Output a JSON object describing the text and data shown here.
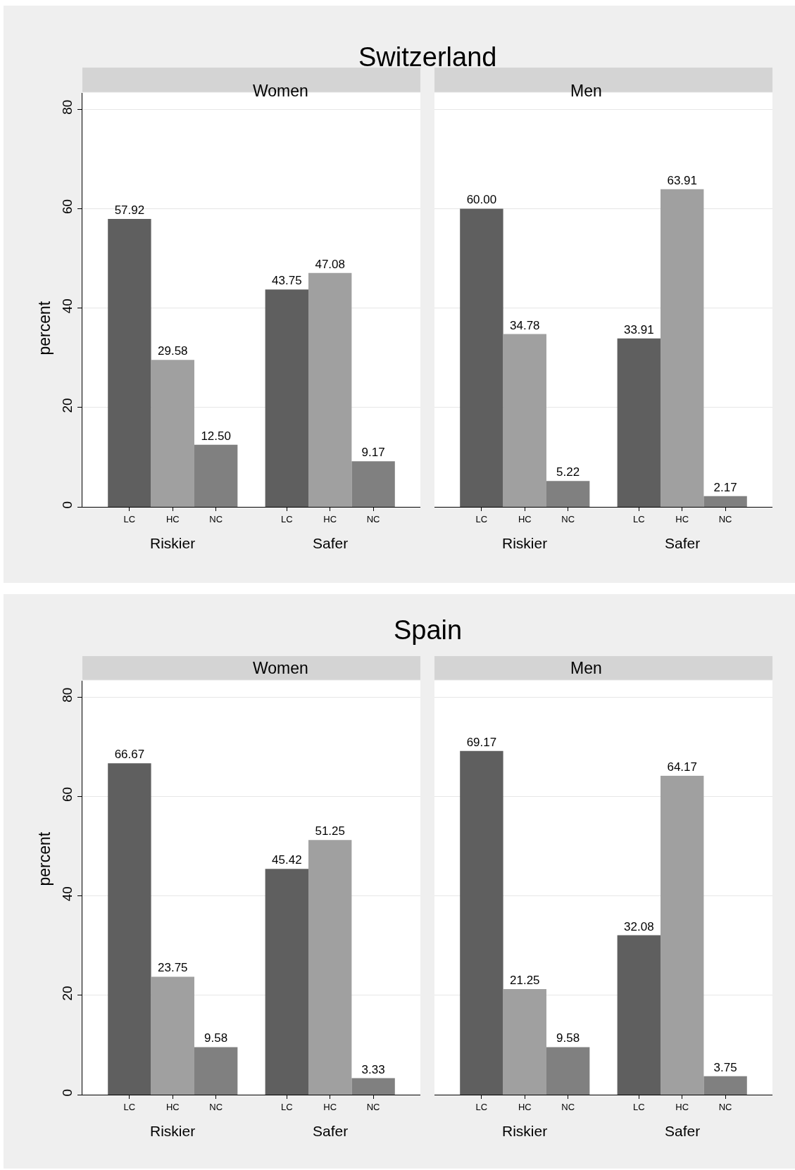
{
  "chart_data": [
    {
      "type": "bar",
      "title": "Switzerland",
      "subtitle": "Women",
      "ylabel": "percent",
      "categories": [
        "Riskier",
        "Safer"
      ],
      "ylim": [
        0,
        83.3
      ],
      "yticks": [
        0,
        20,
        40,
        60,
        80
      ],
      "grid": "y",
      "series": [
        {
          "name": "LC",
          "color": "#5f5f5f",
          "values": [
            57.92,
            43.75
          ],
          "value_labels": [
            "57.92",
            "43.75"
          ]
        },
        {
          "name": "HC",
          "color": "#a0a0a0",
          "values": [
            29.58,
            47.08
          ],
          "value_labels": [
            "29.58",
            "47.08"
          ]
        },
        {
          "name": "NC",
          "color": "#808080",
          "values": [
            12.5,
            9.17
          ],
          "value_labels": [
            "12.50",
            "9.17"
          ]
        }
      ]
    },
    {
      "type": "bar",
      "subtitle": "Men",
      "categories": [
        "Riskier",
        "Safer"
      ],
      "ylim": [
        0,
        83.3
      ],
      "yticks": [
        0,
        20,
        40,
        60,
        80
      ],
      "grid": "y",
      "tick_labels": "x",
      "series": [
        {
          "name": "LC",
          "color": "#5f5f5f",
          "values": [
            60.0,
            33.91
          ],
          "value_labels": [
            "60.00",
            "33.91"
          ]
        },
        {
          "name": "HC",
          "color": "#a0a0a0",
          "values": [
            34.78,
            63.91
          ],
          "value_labels": [
            "34.78",
            "63.91"
          ]
        },
        {
          "name": "NC",
          "color": "#808080",
          "values": [
            5.22,
            2.17
          ],
          "value_labels": [
            "5.22",
            "2.17"
          ]
        }
      ]
    },
    {
      "type": "bar",
      "title": "Spain",
      "subtitle": "Women",
      "ylabel": "percent",
      "categories": [
        "Riskier",
        "Safer"
      ],
      "ylim": [
        0,
        83.3
      ],
      "yticks": [
        0,
        20,
        40,
        60,
        80
      ],
      "grid": "y",
      "series": [
        {
          "name": "LC",
          "color": "#5f5f5f",
          "values": [
            66.67,
            45.42
          ],
          "value_labels": [
            "66.67",
            "45.42"
          ]
        },
        {
          "name": "HC",
          "color": "#a0a0a0",
          "values": [
            23.75,
            51.25
          ],
          "value_labels": [
            "23.75",
            "51.25"
          ]
        },
        {
          "name": "NC",
          "color": "#808080",
          "values": [
            9.58,
            3.33
          ],
          "value_labels": [
            "9.58",
            "3.33"
          ]
        }
      ]
    },
    {
      "type": "bar",
      "subtitle": "Men",
      "categories": [
        "Riskier",
        "Safer"
      ],
      "ylim": [
        0,
        83.3
      ],
      "yticks": [
        0,
        20,
        40,
        60,
        80
      ],
      "grid": "y",
      "tick_labels": "x",
      "series": [
        {
          "name": "LC",
          "color": "#5f5f5f",
          "values": [
            69.17,
            32.08
          ],
          "value_labels": [
            "69.17",
            "32.08"
          ]
        },
        {
          "name": "HC",
          "color": "#a0a0a0",
          "values": [
            21.25,
            64.17
          ],
          "value_labels": [
            "21.25",
            "64.17"
          ]
        },
        {
          "name": "NC",
          "color": "#808080",
          "values": [
            9.58,
            3.75
          ],
          "value_labels": [
            "9.58",
            "3.75"
          ]
        }
      ]
    }
  ]
}
